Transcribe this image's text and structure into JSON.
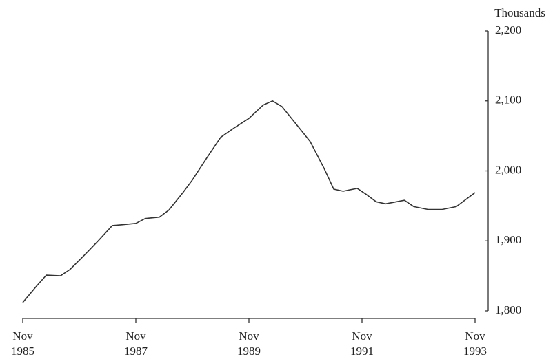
{
  "chart_data": {
    "type": "line",
    "y_label": "Thousands",
    "x": [
      "1985-11",
      "1986-02",
      "1986-04",
      "1986-07",
      "1986-09",
      "1986-12",
      "1987-03",
      "1987-06",
      "1987-08",
      "1987-11",
      "1988-01",
      "1988-04",
      "1988-06",
      "1988-09",
      "1988-11",
      "1989-02",
      "1989-05",
      "1989-08",
      "1989-11",
      "1990-02",
      "1990-04",
      "1990-06",
      "1990-09",
      "1990-12",
      "1991-03",
      "1991-05",
      "1991-07",
      "1991-10",
      "1991-12",
      "1992-02",
      "1992-04",
      "1992-08",
      "1992-10",
      "1993-01",
      "1993-04",
      "1993-07",
      "1993-11"
    ],
    "series": [
      {
        "color": "#333333",
        "values": [
          1812,
          1836,
          1851,
          1850,
          1859,
          1879,
          1900,
          1922,
          1923,
          1925,
          1932,
          1934,
          1944,
          1969,
          1987,
          2018,
          2048,
          2062,
          2075,
          2094,
          2100,
          2092,
          2067,
          2042,
          2003,
          1974,
          1971,
          1975,
          1966,
          1956,
          1953,
          1958,
          1949,
          1945,
          1945,
          1949,
          1969
        ]
      }
    ],
    "xlim": [
      "1985-11",
      "1993-11"
    ],
    "xticks": [
      {
        "value": "1985-11",
        "label": [
          "Nov",
          "1985"
        ]
      },
      {
        "value": "1987-11",
        "label": [
          "Nov",
          "1987"
        ]
      },
      {
        "value": "1989-11",
        "label": [
          "Nov",
          "1989"
        ]
      },
      {
        "value": "1991-11",
        "label": [
          "Nov",
          "1991"
        ]
      },
      {
        "value": "1993-11",
        "label": [
          "Nov",
          "1993"
        ]
      }
    ],
    "ylim": [
      1800,
      2200
    ],
    "yticks": [
      {
        "value": 1800,
        "label": "1,800"
      },
      {
        "value": 1900,
        "label": "1,900"
      },
      {
        "value": 2000,
        "label": "2,000"
      },
      {
        "value": 2100,
        "label": "2,100"
      },
      {
        "value": 2200,
        "label": "2,200"
      }
    ],
    "y_axis_side": "right",
    "grid": false
  }
}
